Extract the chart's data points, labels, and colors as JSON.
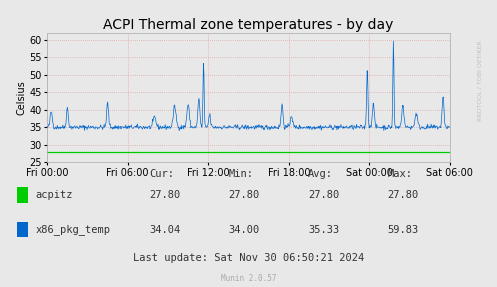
{
  "title": "ACPI Thermal zone temperatures - by day",
  "ylabel": "Celsius",
  "background_color": "#e8e8e8",
  "plot_bg_color": "#e8e8e8",
  "ylim": [
    25,
    62
  ],
  "yticks": [
    25,
    30,
    35,
    40,
    45,
    50,
    55,
    60
  ],
  "xtick_positions": [
    0,
    6,
    12,
    18,
    24,
    30
  ],
  "xtick_labels": [
    "Fri 00:00",
    "Fri 06:00",
    "Fri 12:00",
    "Fri 18:00",
    "Sat 00:00",
    "Sat 06:00"
  ],
  "acpitz_color": "#00cc00",
  "x86_color": "#0066cc",
  "grid_color": "#dd8888",
  "legend_labels": [
    "acpitz",
    "x86_pkg_temp"
  ],
  "cur_acpitz": "27.80",
  "min_acpitz": "27.80",
  "avg_acpitz": "27.80",
  "max_acpitz": "27.80",
  "cur_x86": "34.04",
  "min_x86": "34.00",
  "avg_x86": "35.33",
  "max_x86": "59.83",
  "last_update": "Last update: Sat Nov 30 06:50:21 2024",
  "munin_version": "Munin 2.0.57",
  "rrdtool_text": "RRDTOOL / TOBI OETIKER",
  "title_fontsize": 10,
  "axis_fontsize": 7,
  "legend_fontsize": 7.5,
  "table_fontsize": 7.5
}
